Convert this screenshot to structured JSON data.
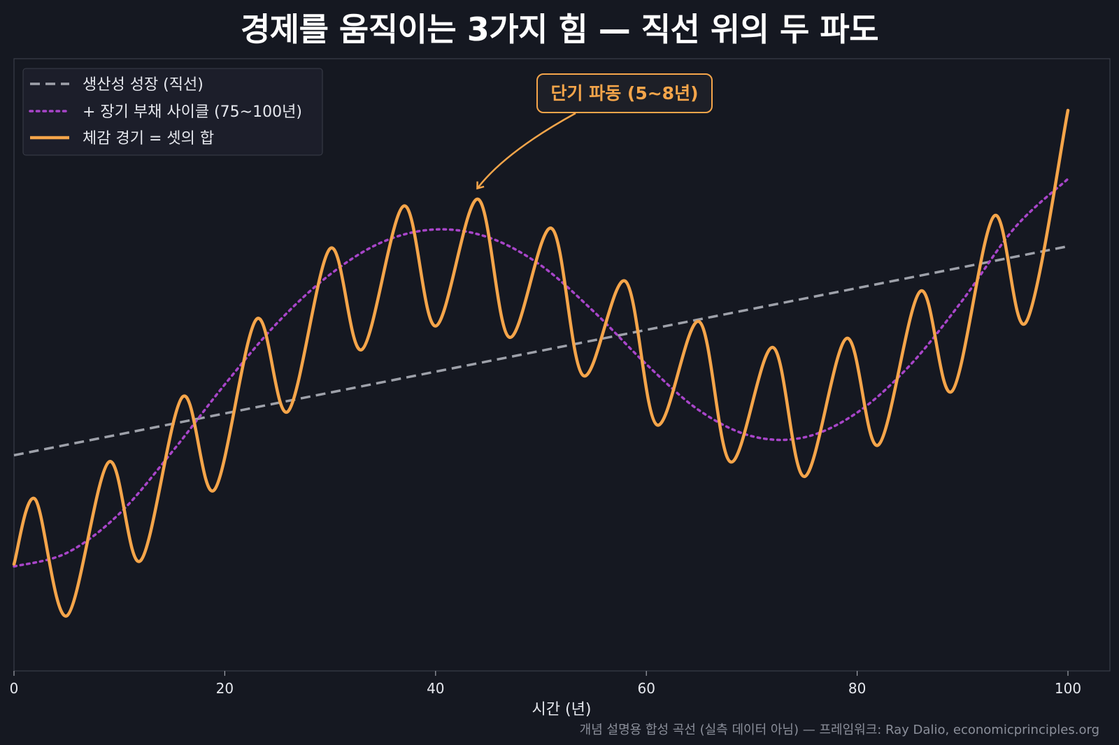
{
  "chart_data": {
    "type": "line",
    "title": "경제를 움직이는 3가지 힘 — 직선 위의 두 파도",
    "xlabel": "시간 (년)",
    "ylabel": "",
    "xlim": [
      0,
      100
    ],
    "ylim": [
      -0.1,
      5.35
    ],
    "x_ticks": [
      0,
      20,
      40,
      60,
      80,
      100
    ],
    "y_ticks_visible": false,
    "grid": false,
    "legend_position": "top-left",
    "colors": {
      "background": "#151821",
      "trend": "#9ea1aa",
      "long_cycle": "#a845c9",
      "total": "#f5a54a",
      "annotation": "#f5a54a"
    },
    "series": [
      {
        "key": "trend",
        "name": "생산성 성장 (직선)",
        "style": "dashed",
        "color": "#9ea1aa",
        "x": [
          0,
          100
        ],
        "y": [
          1.82,
          3.68
        ]
      },
      {
        "key": "long_cycle",
        "name": "+ 장기 부채 사이클 (75~100년)",
        "style": "dotted",
        "color": "#a845c9",
        "x": [
          0,
          5,
          10,
          15,
          20,
          25,
          30,
          35,
          40,
          45,
          50,
          55,
          60,
          65,
          70,
          75,
          80,
          85,
          90,
          95,
          100
        ],
        "y": [
          0.83,
          0.95,
          1.3,
          1.85,
          2.45,
          3.0,
          3.43,
          3.72,
          3.83,
          3.76,
          3.51,
          3.1,
          2.63,
          2.22,
          1.99,
          1.98,
          2.2,
          2.62,
          3.2,
          3.85,
          4.28
        ]
      },
      {
        "key": "total",
        "name": "체감 경기 = 셋의 합",
        "style": "solid",
        "color": "#f5a54a",
        "x": [
          0,
          2,
          5,
          9,
          12,
          16,
          19,
          23,
          26,
          30,
          33,
          37,
          40,
          44,
          47,
          51,
          54,
          58,
          61,
          65,
          68,
          72,
          75,
          79,
          82,
          86,
          89,
          93,
          96,
          100
        ],
        "y": [
          0.85,
          1.43,
          0.39,
          1.76,
          0.88,
          2.34,
          1.51,
          3.03,
          2.21,
          3.66,
          2.76,
          4.04,
          2.97,
          4.1,
          2.87,
          3.84,
          2.53,
          3.37,
          2.09,
          3.01,
          1.76,
          2.78,
          1.63,
          2.86,
          1.91,
          3.28,
          2.39,
          3.95,
          3.0,
          4.89
        ]
      }
    ],
    "annotation": {
      "text": "단기 파동 (5~8년)",
      "x": 44,
      "y": 4.2
    },
    "footnote": "개념 설명용 합성 곡선 (실측 데이터 아님) — 프레임워크: Ray Dalio, economicprinciples.org"
  }
}
